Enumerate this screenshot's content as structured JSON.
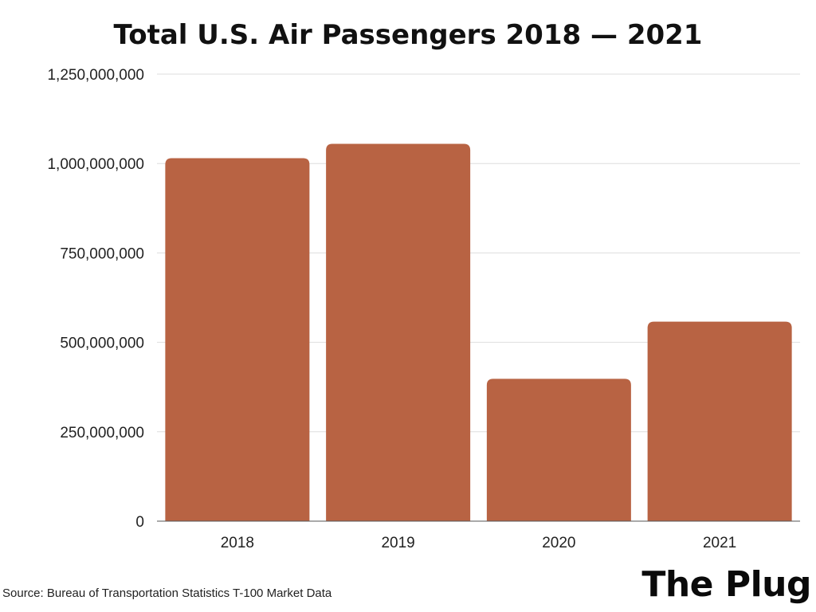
{
  "chart_data": {
    "type": "bar",
    "title": "Total U.S. Air Passengers 2018 — 2021",
    "xlabel": "",
    "ylabel": "",
    "categories": [
      "2018",
      "2019",
      "2020",
      "2021"
    ],
    "values": [
      1015000000,
      1055000000,
      398000000,
      558000000
    ],
    "ylim": [
      0,
      1250000000
    ],
    "yticks": [
      0,
      250000000,
      500000000,
      750000000,
      1000000000,
      1250000000
    ],
    "ytick_labels": [
      "0",
      "250,000,000",
      "500,000,000",
      "750,000,000",
      "1,000,000,000",
      "1,250,000,000"
    ],
    "grid": true,
    "legend": "none",
    "bar_color": "#b86343",
    "grid_color": "#dddddd"
  },
  "footer": {
    "source": "Source: Bureau of Transportation Statistics T-100 Market Data",
    "brand": "The Plug"
  }
}
